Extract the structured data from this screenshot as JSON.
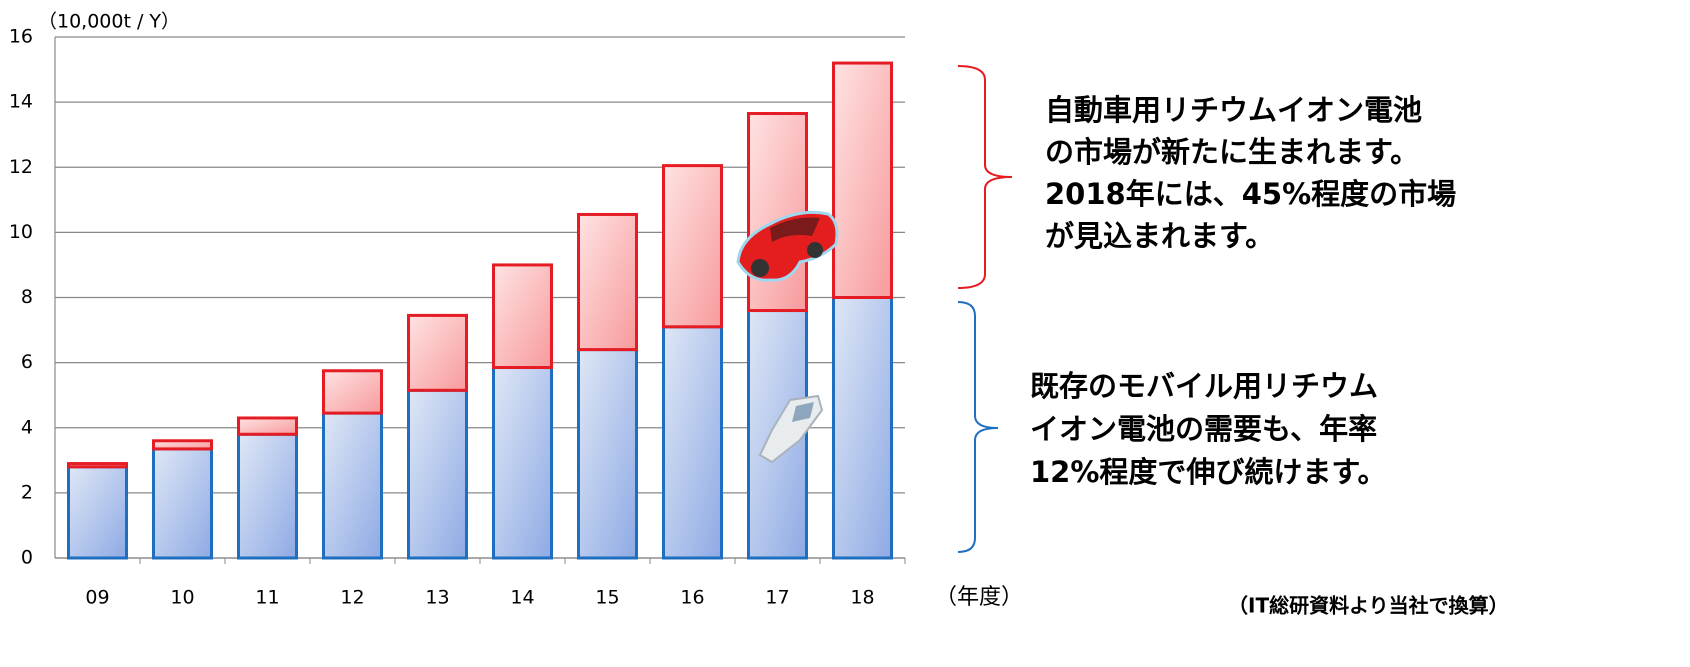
{
  "chart_data": {
    "type": "stacked_bar",
    "y_axis_label": "（10,000t / Y）",
    "x_axis_label": "（年度）",
    "categories": [
      "09",
      "10",
      "11",
      "12",
      "13",
      "14",
      "15",
      "16",
      "17",
      "18"
    ],
    "series": [
      {
        "color": "#1f6fc0",
        "values": [
          2.8,
          3.35,
          3.8,
          4.45,
          5.15,
          5.85,
          6.4,
          7.1,
          7.6,
          8.0
        ]
      },
      {
        "color": "#e51c23",
        "values": [
          0.1,
          0.25,
          0.5,
          1.3,
          2.3,
          3.15,
          4.15,
          4.95,
          6.05,
          7.2
        ]
      }
    ],
    "ylim": [
      0,
      16
    ],
    "yticks": [
      0,
      2,
      4,
      6,
      8,
      10,
      12,
      14,
      16
    ],
    "grid": true,
    "annotations": {
      "automotive": [
        "自動車用リチウムイオン電池",
        "の市場が新たに生まれます。",
        "2018年には、45%程度の市場",
        "が見込まれます。"
      ],
      "mobile": [
        "既存のモバイル用リチウム",
        "イオン電池の需要も、年率",
        "12%程度で伸び続けます。"
      ]
    },
    "source": "（IT総研資料より当社で換算）"
  }
}
